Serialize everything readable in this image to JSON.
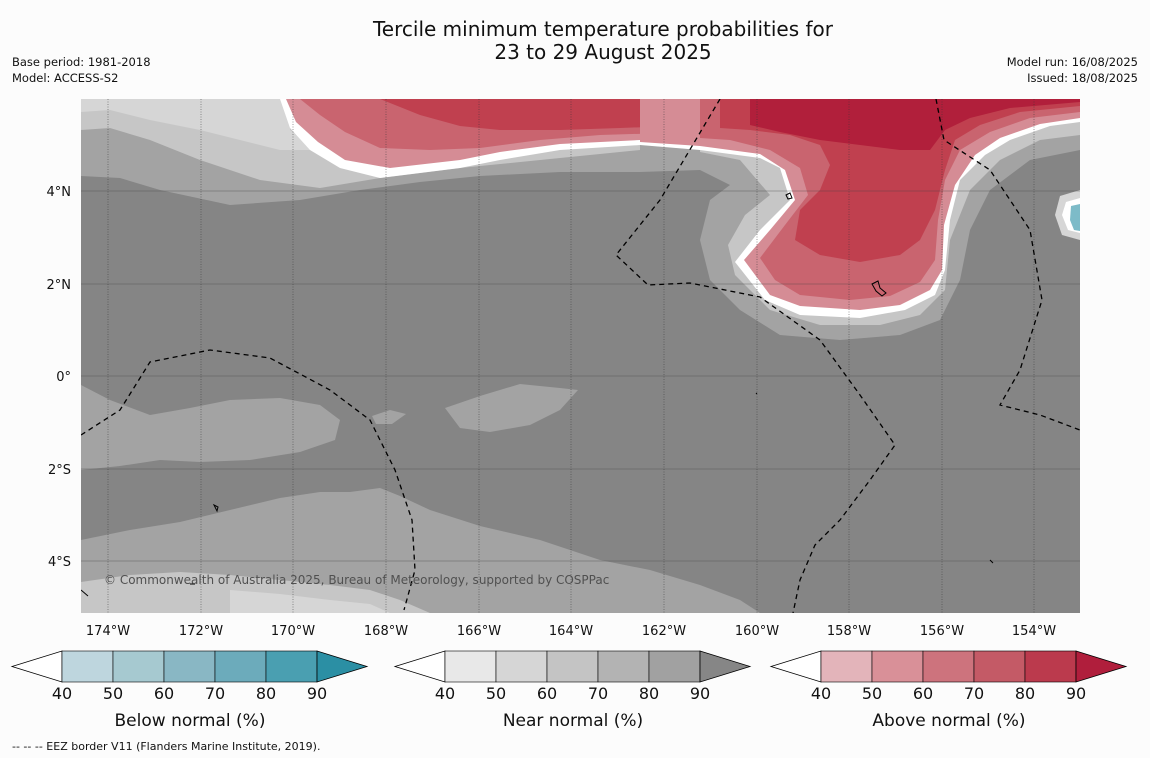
{
  "title": {
    "line1": "Tercile minimum temperature probabilities for",
    "line2": "23 to 29 August 2025"
  },
  "meta": {
    "base_period": "Base period: 1981-2018",
    "model": "Model: ACCESS-S2",
    "model_run": "Model run: 16/08/2025",
    "issued": "Issued: 18/08/2025"
  },
  "map": {
    "longitude_labels": [
      "174°W",
      "172°W",
      "170°W",
      "168°W",
      "166°W",
      "164°W",
      "162°W",
      "160°W",
      "158°W",
      "156°W",
      "154°W"
    ],
    "latitude_labels": [
      "4°N",
      "2°N",
      "0°",
      "2°S",
      "4°S"
    ],
    "copyright": "© Commonwealth of Australia 2025, Bureau of Meteorology, supported by COSPPac",
    "colors": {
      "near_dominant": "#858585",
      "near_mid": "#a3a3a3",
      "near_light": "#c6c6c6",
      "above_strong": "#b11f3b",
      "above_mid": "#c0404f",
      "above_light": "#d58c95",
      "below_light": "#7dbbc8"
    }
  },
  "legends": [
    {
      "id": "below",
      "label": "Below normal (%)",
      "ticks": [
        "40",
        "50",
        "60",
        "70",
        "80",
        "90"
      ],
      "colors": [
        "#bed6de",
        "#a6c9d0",
        "#89b7c4",
        "#6cabbb",
        "#4a9fb1",
        "#2b8fa4"
      ]
    },
    {
      "id": "near",
      "label": "Near normal (%)",
      "ticks": [
        "40",
        "50",
        "60",
        "70",
        "80",
        "90"
      ],
      "colors": [
        "#e8e8e8",
        "#d6d6d6",
        "#c4c4c4",
        "#b3b3b3",
        "#a1a1a1",
        "#868686"
      ]
    },
    {
      "id": "above",
      "label": "Above normal (%)",
      "ticks": [
        "40",
        "50",
        "60",
        "70",
        "80",
        "90"
      ],
      "colors": [
        "#e3b4ba",
        "#d99098",
        "#cd737d",
        "#c45a66",
        "#bb3a4d",
        "#b01e3c"
      ]
    }
  ],
  "footnote": "--  --  -- EEZ border V11 (Flanders Marine Institute, 2019)."
}
